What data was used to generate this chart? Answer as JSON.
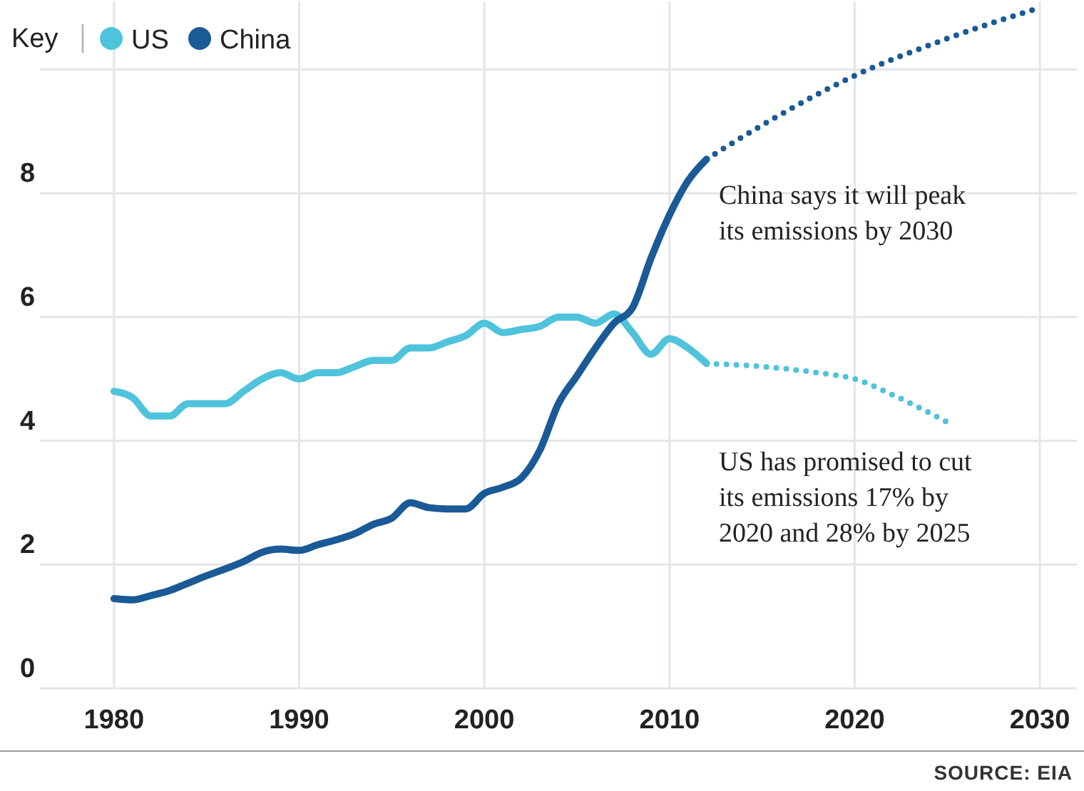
{
  "chart_data": {
    "type": "line",
    "legend_title": "Key",
    "legend": "top left",
    "grid": true,
    "line_style": "solid",
    "marker": "none",
    "xlim": [
      1976,
      2032
    ],
    "xticks": [
      1980,
      1990,
      2000,
      2010,
      2020,
      2030
    ],
    "ylim": [
      0,
      11.1
    ],
    "yticks": [
      0,
      2,
      4,
      6,
      8,
      {
        "value": 10,
        "label": null
      }
    ],
    "x": [
      1980,
      1981,
      1982,
      1983,
      1984,
      1985,
      1986,
      1987,
      1988,
      1989,
      1990,
      1991,
      1992,
      1993,
      1994,
      1995,
      1996,
      1997,
      1998,
      1999,
      2000,
      2001,
      2002,
      2003,
      2004,
      2005,
      2006,
      2007,
      2008,
      2009,
      2010,
      2011,
      2012
    ],
    "series": [
      {
        "name": "US",
        "color": "#4fc3dc",
        "values": [
          4.8,
          4.7,
          4.4,
          4.4,
          4.6,
          4.6,
          4.6,
          4.8,
          5.0,
          5.1,
          5.0,
          5.1,
          5.1,
          5.2,
          5.3,
          5.3,
          5.5,
          5.5,
          5.6,
          5.7,
          5.9,
          5.75,
          5.8,
          5.85,
          6.0,
          6.0,
          5.9,
          6.05,
          5.75,
          5.4,
          5.65,
          5.5,
          5.25
        ]
      },
      {
        "name": "China",
        "color": "#1a5a96",
        "values": [
          1.45,
          1.43,
          1.5,
          1.58,
          1.7,
          1.82,
          1.93,
          2.05,
          2.2,
          2.25,
          2.23,
          2.32,
          2.4,
          2.5,
          2.65,
          2.75,
          3.0,
          2.92,
          2.9,
          2.9,
          3.15,
          3.25,
          3.4,
          3.85,
          4.6,
          5.05,
          5.5,
          5.9,
          6.15,
          6.95,
          7.65,
          8.2,
          8.55
        ]
      },
      {
        "color": "#4fc3dc",
        "line_style": "dotted",
        "x": [
          2012,
          2015,
          2018,
          2020,
          2022,
          2025
        ],
        "values": [
          5.25,
          5.2,
          5.1,
          5.0,
          4.75,
          4.3
        ]
      },
      {
        "color": "#1a5a96",
        "line_style": "dotted",
        "x": [
          2012,
          2015,
          2020,
          2025,
          2030
        ],
        "values": [
          8.55,
          9.1,
          9.9,
          10.5,
          11.0
        ]
      }
    ],
    "annotations": [
      "China says it will peak its emissions by 2030",
      "US has promised to cut its emissions 17% by 2020 and 28% by 2025",
      "SOURCE: EIA"
    ]
  }
}
